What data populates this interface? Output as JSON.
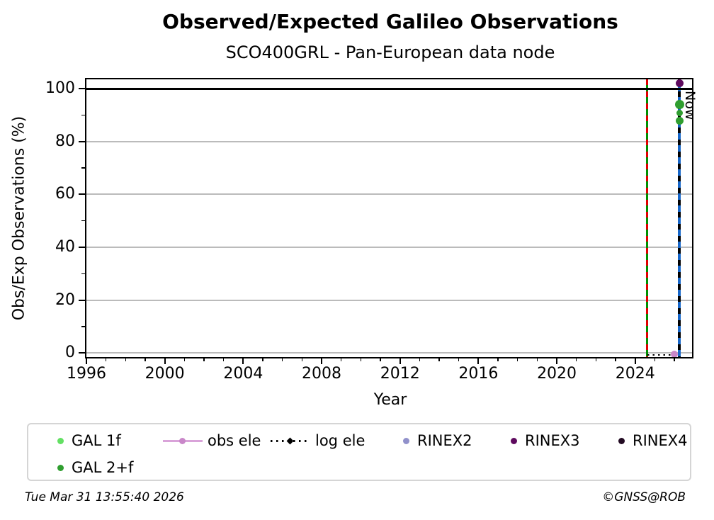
{
  "chart_data": {
    "type": "scatter",
    "title": "Observed/Expected Galileo Observations",
    "subtitle": "SCO400GRL - Pan-European data node",
    "xlabel": "Year",
    "ylabel": "Obs/Exp Observations (%)",
    "xlim": [
      1996,
      2026.9
    ],
    "ylim": [
      -1.6,
      103.6
    ],
    "x_major_ticks": [
      1996,
      2000,
      2004,
      2008,
      2012,
      2016,
      2020,
      2024
    ],
    "y_major_ticks": [
      0,
      20,
      40,
      60,
      80,
      100
    ],
    "y_minor_ticks": [
      10,
      30,
      50,
      70,
      90
    ],
    "grid": {
      "horizontal": true,
      "vertical": false,
      "color": "#bbbbbb"
    },
    "reference_lines": [
      {
        "name": "expected-100-percent",
        "orientation": "horizontal",
        "value": 100,
        "color": "#000000",
        "pattern": "solid",
        "width": 3.5
      },
      {
        "name": "data-gap-marker",
        "orientation": "vertical",
        "value": 2024.6,
        "color": "#008f00",
        "dash_color": "#e00000",
        "pattern": "dashed-overlay",
        "width": 3.2
      },
      {
        "name": "now-line",
        "orientation": "vertical",
        "value": 2026.25,
        "color": "#1565c8",
        "dash_color": "#000000",
        "pattern": "dashed-overlay",
        "width": 4,
        "label": "Now"
      }
    ],
    "series": [
      {
        "name": "GAL 1f",
        "marker": "dot",
        "color": "#63e063",
        "points": []
      },
      {
        "name": "GAL 2+f",
        "marker": "dot",
        "color": "#2f9e2f",
        "points": [
          [
            2026.25,
            94,
            13
          ],
          [
            2026.25,
            90.8,
            9
          ],
          [
            2026.25,
            88,
            11
          ]
        ]
      },
      {
        "name": "obs ele",
        "marker": "line-dot",
        "color": "#d9a3d9",
        "dot_color": "#c987c9",
        "points": [
          [
            2026.0,
            -0.4,
            10
          ]
        ]
      },
      {
        "name": "log ele",
        "marker": "dotted-caret",
        "color": "#000000",
        "points": [],
        "segments": [
          [
            2024.62,
            2025.9,
            -0.8
          ]
        ]
      },
      {
        "name": "RINEX2",
        "marker": "dot",
        "color": "#9191cb",
        "points": []
      },
      {
        "name": "RINEX3",
        "marker": "dot",
        "color": "#5e0a5e",
        "points": [
          [
            2026.25,
            102,
            11
          ]
        ]
      },
      {
        "name": "RINEX4",
        "marker": "dot",
        "color": "#230b23",
        "points": []
      }
    ],
    "legend": {
      "position": "bottom",
      "ncol": 6,
      "entries": [
        "GAL 1f",
        "GAL 2+f",
        "obs ele",
        "log ele",
        "RINEX2",
        "RINEX3",
        "RINEX4"
      ]
    }
  },
  "footer": {
    "timestamp": "Tue Mar 31 13:55:40 2026",
    "credit": "©GNSS@ROB"
  }
}
